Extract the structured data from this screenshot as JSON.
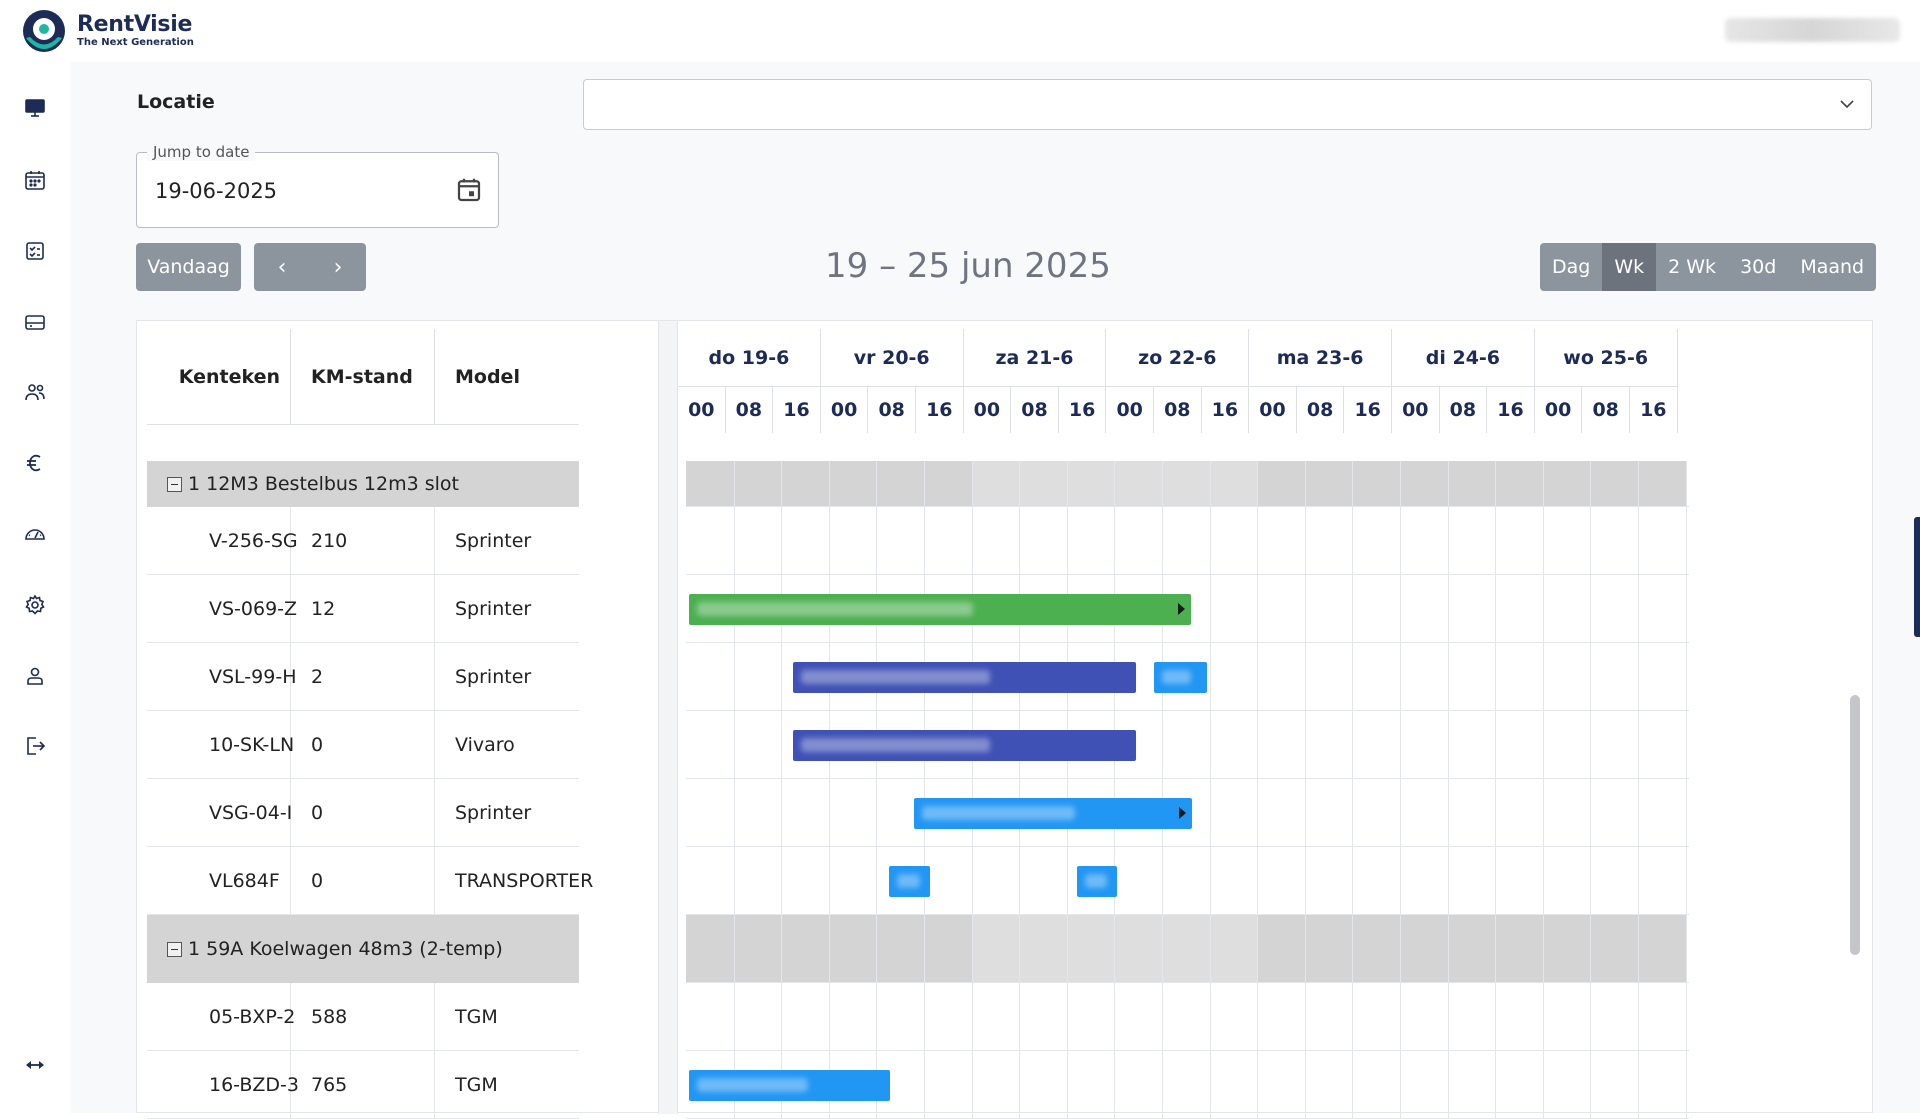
{
  "brand": {
    "name": "RentVisie",
    "tagline": "The Next Generation",
    "primary_color": "#1d2b57",
    "accent_color": "#1fb7a4"
  },
  "sidebar": {
    "items": [
      {
        "icon": "monitor-icon"
      },
      {
        "icon": "calendar-icon"
      },
      {
        "icon": "checklist-icon"
      },
      {
        "icon": "inbox-icon"
      },
      {
        "icon": "users-icon"
      },
      {
        "icon": "euro-icon"
      },
      {
        "icon": "speedometer-icon"
      },
      {
        "icon": "gear-icon"
      },
      {
        "icon": "user-icon"
      },
      {
        "icon": "logout-icon"
      }
    ],
    "expand_icon": "expand-arrows-icon"
  },
  "filters": {
    "location_label": "Locatie",
    "location_value": "",
    "jump_label": "Jump to date",
    "jump_value": "19-06-2025"
  },
  "toolbar": {
    "today_label": "Vandaag",
    "prev_label": "‹",
    "next_label": "›",
    "range_title": "19 – 25 jun 2025",
    "views": [
      {
        "label": "Dag",
        "active": false
      },
      {
        "label": "Wk",
        "active": true
      },
      {
        "label": "2 Wk",
        "active": false
      },
      {
        "label": "30d",
        "active": false
      },
      {
        "label": "Maand",
        "active": false
      }
    ]
  },
  "table": {
    "headers": [
      "Kenteken",
      "KM-stand",
      "Model"
    ]
  },
  "timeline": {
    "days": [
      "do 19-6",
      "vr 20-6",
      "za 21-6",
      "zo 22-6",
      "ma 23-6",
      "di 24-6",
      "wo 25-6"
    ],
    "hours": [
      "00",
      "08",
      "16"
    ]
  },
  "rows": [
    {
      "type": "group",
      "label": "1 12M3 Bestelbus 12m3 slot"
    },
    {
      "type": "vehicle",
      "plate": "V-256-SG",
      "km": "210",
      "model": "Sprinter"
    },
    {
      "type": "vehicle",
      "plate": "VS-069-Z",
      "km": "12",
      "model": "Sprinter"
    },
    {
      "type": "vehicle",
      "plate": "VSL-99-H",
      "km": "2",
      "model": "Sprinter"
    },
    {
      "type": "vehicle",
      "plate": "10-SK-LN",
      "km": "0",
      "model": "Vivaro"
    },
    {
      "type": "vehicle",
      "plate": "VSG-04-I",
      "km": "0",
      "model": "Sprinter"
    },
    {
      "type": "vehicle",
      "plate": "VL684F",
      "km": "0",
      "model": "TRANSPORTER"
    },
    {
      "type": "group",
      "label": "1 59A Koelwagen 48m3 (2-temp)"
    },
    {
      "type": "vehicle",
      "plate": "05-BXP-2",
      "km": "588",
      "model": "TGM"
    },
    {
      "type": "vehicle",
      "plate": "16-BZD-3",
      "km": "765",
      "model": "TGM"
    }
  ],
  "bookings": [
    {
      "row": 2,
      "start": 0.02,
      "end": 3.54,
      "color": "#4caf50",
      "continues": true
    },
    {
      "row": 3,
      "start": 0.75,
      "end": 3.15,
      "color": "#3f51b5",
      "continues": false
    },
    {
      "row": 3,
      "start": 3.28,
      "end": 3.65,
      "color": "#2196f3",
      "continues": false
    },
    {
      "row": 4,
      "start": 0.75,
      "end": 3.15,
      "color": "#3f51b5",
      "continues": false
    },
    {
      "row": 5,
      "start": 1.6,
      "end": 3.54,
      "color": "#2196f3",
      "continues": true
    },
    {
      "row": 6,
      "start": 1.42,
      "end": 1.71,
      "color": "#2196f3",
      "continues": false
    },
    {
      "row": 6,
      "start": 2.74,
      "end": 3.02,
      "color": "#2196f3",
      "continues": false
    },
    {
      "row": 9,
      "start": 0.02,
      "end": 1.43,
      "color": "#2196f3",
      "continues": false
    }
  ]
}
